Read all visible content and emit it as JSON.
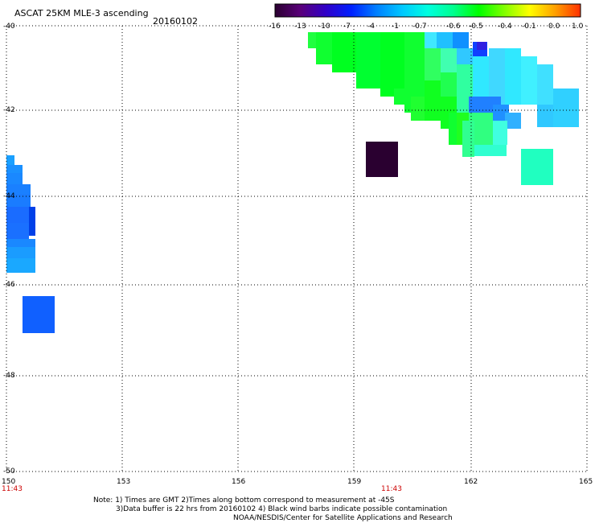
{
  "header": {
    "title": "ASCAT 25KM MLE-3 ascending",
    "date": "20160102"
  },
  "colorbar": {
    "labels": [
      "-16",
      "-13",
      "-10",
      "-7",
      "-4",
      "-1",
      "-0.7",
      "-0.6",
      "-0.5",
      "-0.4",
      "-0.1",
      "0.0",
      "1.0"
    ],
    "colors": [
      "#2a0030",
      "#5a007a",
      "#3000c8",
      "#0020ff",
      "#0080ff",
      "#00c8ff",
      "#00ffe0",
      "#00ff90",
      "#00ff00",
      "#80ff00",
      "#ffff00",
      "#ffa000",
      "#ff3000"
    ]
  },
  "axes": {
    "lon_ticks": [
      "150",
      "153",
      "156",
      "159",
      "162",
      "165"
    ],
    "lat_ticks": [
      "-40",
      "-42",
      "-44",
      "-46",
      "-48",
      "-50"
    ],
    "time_labels": [
      "11:43",
      "11:43"
    ]
  },
  "notes": [
    "Note: 1) Times are GMT 2)Times along bottom correspond to measurement at -45S",
    "3)Data buffer is 22 hrs from 20160102 4) Black wind barbs indicate possible contamination",
    "NOAA/NESDIS/Center for Satellite Applications and Research"
  ]
}
